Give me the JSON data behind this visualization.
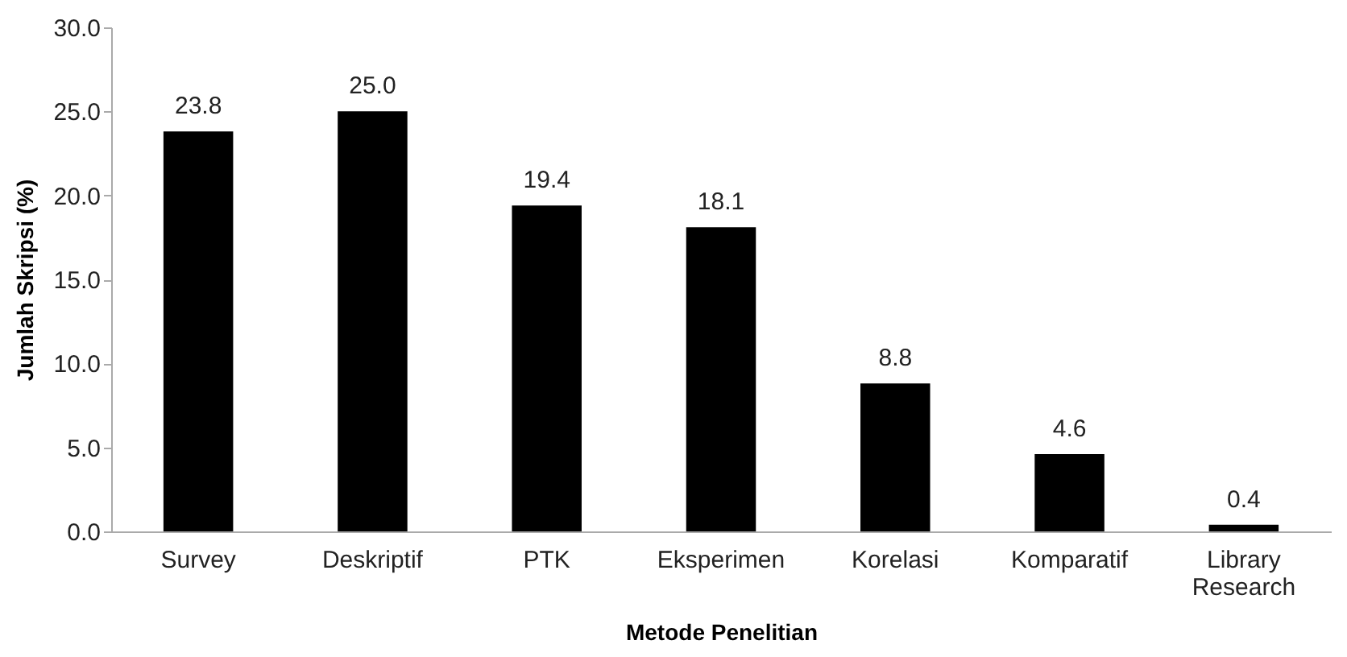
{
  "chart_data": {
    "type": "bar",
    "xlabel": "Metode Penelitian",
    "ylabel": "Jumlah Skripsi (%)",
    "categories": [
      "Survey",
      "Deskriptif",
      "PTK",
      "Eksperimen",
      "Korelasi",
      "Komparatif",
      "Library Research"
    ],
    "values": [
      23.8,
      25.0,
      19.4,
      18.1,
      8.8,
      4.6,
      0.4
    ],
    "value_labels": [
      "23.8",
      "25.0",
      "19.4",
      "18.1",
      "8.8",
      "4.6",
      "0.4"
    ],
    "color": "#000000",
    "ylim": [
      0,
      30
    ],
    "yticks": [
      {
        "value": 0,
        "label": "0.0"
      },
      {
        "value": 5,
        "label": "5.0"
      },
      {
        "value": 10,
        "label": "10.0"
      },
      {
        "value": 15,
        "label": "15.0"
      },
      {
        "value": 20,
        "label": "20.0"
      },
      {
        "value": 25,
        "label": "25.0"
      },
      {
        "value": 30,
        "label": "30.0"
      }
    ],
    "grid": false
  }
}
